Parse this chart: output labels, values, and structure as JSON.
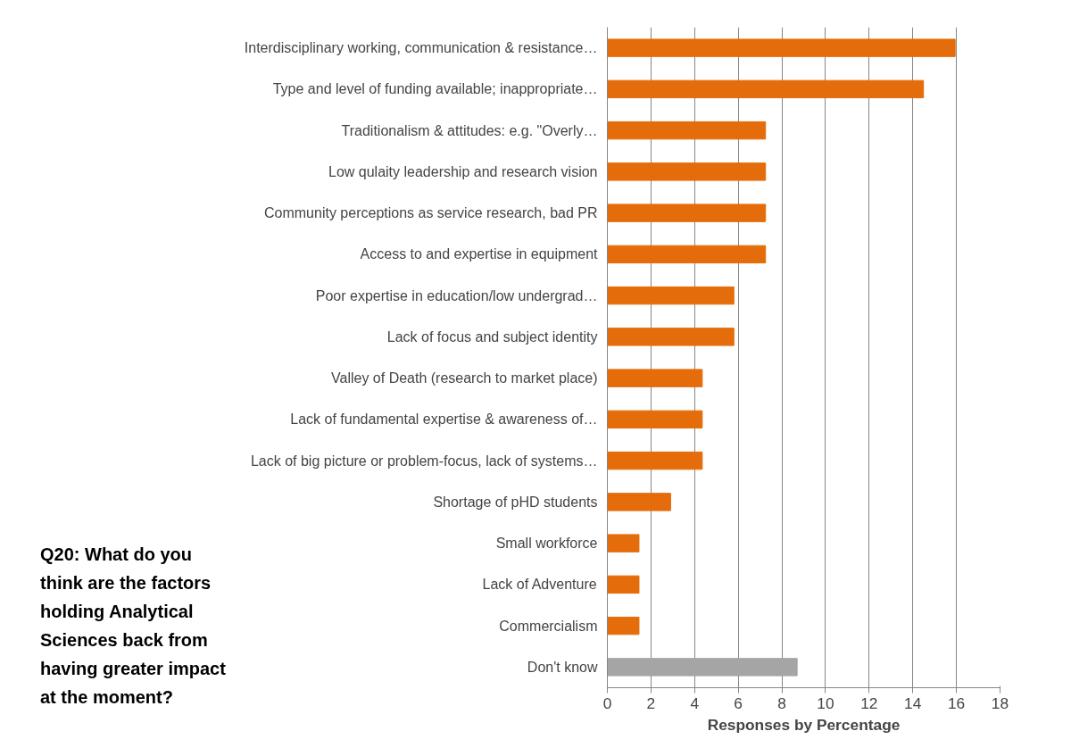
{
  "chart_data": {
    "type": "bar",
    "orientation": "horizontal",
    "title": "Q20: What do you think are the factors holding Analytical Sciences back from having greater impact at the moment?",
    "xlabel": "Responses by Percentage",
    "categories": [
      "Interdisciplinary working, communication & resistance…",
      "Type and level of funding available; inappropriate…",
      "Traditionalism & attitudes: e.g. \"Overly…",
      "Low qulaity leadership and research vision",
      "Community perceptions as service research, bad PR",
      "Access to and expertise in equipment",
      "Poor expertise in education/low undergrad…",
      "Lack of focus and subject identity",
      "Valley of Death (research to market place)",
      "Lack of fundamental expertise & awareness of…",
      "Lack of big picture or problem-focus, lack of systems…",
      "Shortage of pHD students",
      "Small workforce",
      "Lack of Adventure",
      "Commercialism",
      "Don't know"
    ],
    "values": [
      15.94,
      14.49,
      7.25,
      7.25,
      7.25,
      7.25,
      5.8,
      5.8,
      4.35,
      4.35,
      4.35,
      2.9,
      1.45,
      1.45,
      1.45,
      8.7
    ],
    "colors": [
      "#e46c0a",
      "#e46c0a",
      "#e46c0a",
      "#e46c0a",
      "#e46c0a",
      "#e46c0a",
      "#e46c0a",
      "#e46c0a",
      "#e46c0a",
      "#e46c0a",
      "#e46c0a",
      "#e46c0a",
      "#e46c0a",
      "#e46c0a",
      "#e46c0a",
      "#a5a5a5"
    ],
    "xlim": [
      0,
      18
    ],
    "xticks": [
      0,
      2,
      4,
      6,
      8,
      10,
      12,
      14,
      16,
      18
    ],
    "grid": "x"
  }
}
